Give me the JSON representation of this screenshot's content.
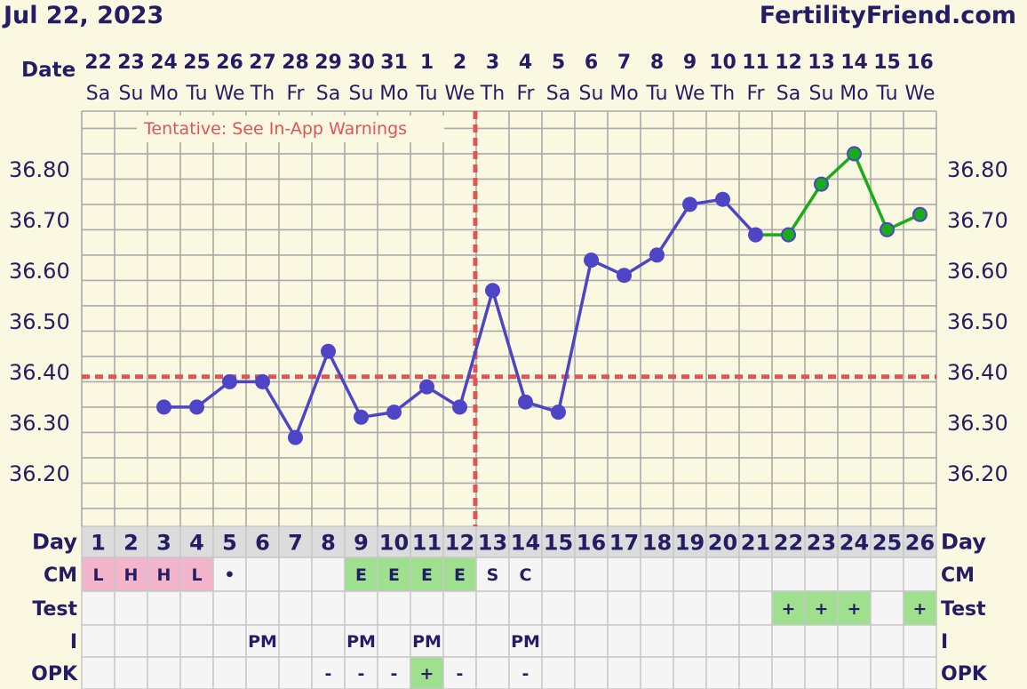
{
  "header": {
    "date": "Jul 22, 2023",
    "site": "FertilityFriend.com"
  },
  "chart_data": {
    "type": "line",
    "row_labels": {
      "date": "Date",
      "day": "Day",
      "cm": "CM",
      "test": "Test",
      "i": "I",
      "opk": "OPK"
    },
    "dates": [
      "22",
      "23",
      "24",
      "25",
      "26",
      "27",
      "28",
      "29",
      "30",
      "31",
      "1",
      "2",
      "3",
      "4",
      "5",
      "6",
      "7",
      "8",
      "9",
      "10",
      "11",
      "12",
      "13",
      "14",
      "15",
      "16"
    ],
    "weekdays": [
      "Sa",
      "Su",
      "Mo",
      "Tu",
      "We",
      "Th",
      "Fr",
      "Sa",
      "Su",
      "Mo",
      "Tu",
      "We",
      "Th",
      "Fr",
      "Sa",
      "Su",
      "Mo",
      "Tu",
      "We",
      "Th",
      "Fr",
      "Sa",
      "Su",
      "Mo",
      "Tu",
      "We"
    ],
    "days": [
      "1",
      "2",
      "3",
      "4",
      "5",
      "6",
      "7",
      "8",
      "9",
      "10",
      "11",
      "12",
      "13",
      "14",
      "15",
      "16",
      "17",
      "18",
      "19",
      "20",
      "21",
      "22",
      "23",
      "24",
      "25",
      "26"
    ],
    "y_ticks": [
      "36.20",
      "36.30",
      "36.40",
      "36.50",
      "36.60",
      "36.70",
      "36.80"
    ],
    "ylim": [
      36.11,
      36.89
    ],
    "temperatures": [
      null,
      null,
      36.33,
      36.33,
      36.38,
      36.38,
      36.27,
      36.44,
      36.31,
      36.32,
      36.37,
      36.33,
      36.56,
      36.34,
      36.32,
      36.62,
      36.59,
      36.63,
      36.73,
      36.74,
      36.67,
      36.67,
      36.77,
      36.83,
      36.68,
      36.71
    ],
    "series_colors": {
      "main": "#4e44c6",
      "projected": "#19ac19",
      "projected_from_day": 21
    },
    "coverline": 36.39,
    "ovulation_day": 12,
    "annotation": "Tentative: See In-App Warnings",
    "cm": [
      "L",
      "H",
      "H",
      "L",
      "•",
      "",
      "",
      "",
      "E",
      "E",
      "E",
      "E",
      "S",
      "C",
      "",
      "",
      "",
      "",
      "",
      "",
      "",
      "",
      "",
      "",
      "",
      ""
    ],
    "cm_colors": {
      "L": "#f2b5cc",
      "H": "#f2b5cc",
      "E": "#9fe08f"
    },
    "test": [
      "",
      "",
      "",
      "",
      "",
      "",
      "",
      "",
      "",
      "",
      "",
      "",
      "",
      "",
      "",
      "",
      "",
      "",
      "",
      "",
      "",
      "+",
      "+",
      "+",
      "",
      "+"
    ],
    "intercourse": [
      "",
      "",
      "",
      "",
      "",
      "PM",
      "",
      "",
      "PM",
      "",
      "PM",
      "",
      "",
      "PM",
      "",
      "",
      "",
      "",
      "",
      "",
      "",
      "",
      "",
      "",
      "",
      ""
    ],
    "opk": [
      "",
      "",
      "",
      "",
      "",
      "",
      "",
      "-",
      "-",
      "-",
      "+",
      "-",
      "",
      "-",
      "",
      "",
      "",
      "",
      "",
      "",
      "",
      "",
      "",
      "",
      "",
      ""
    ],
    "colors": {
      "background": "#fbf8e2",
      "grid": "#aaaaaa",
      "dark_text": "#241c64",
      "line": "#4e44c6",
      "line_end": "#19ac19",
      "coverline": "#de5555",
      "day_row": "#dcdcdc",
      "table_bg": "#f5f5f5",
      "positive": "#9fe08f"
    }
  }
}
